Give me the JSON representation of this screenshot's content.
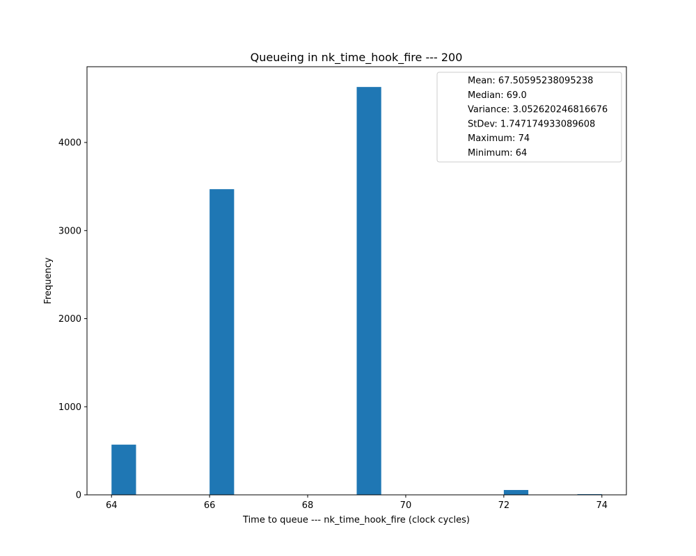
{
  "chart_data": {
    "type": "bar",
    "title": "Queueing in nk_time_hook_fire --- 200",
    "xlabel": "Time to queue --- nk_time_hook_fire (clock cycles)",
    "ylabel": "Frequency",
    "xlim": [
      63.5,
      74.5
    ],
    "ylim": [
      0,
      4860
    ],
    "xticks": [
      64,
      66,
      68,
      70,
      72,
      74
    ],
    "yticks": [
      0,
      1000,
      2000,
      3000,
      4000
    ],
    "bin_width": 0.5,
    "bars": [
      {
        "x0": 64.0,
        "value": 570
      },
      {
        "x0": 66.0,
        "value": 3470
      },
      {
        "x0": 69.0,
        "value": 4630
      },
      {
        "x0": 72.0,
        "value": 55
      },
      {
        "x0": 73.5,
        "value": 8
      }
    ],
    "bar_color": "#1f77b4",
    "grid": false,
    "legend_position": "top-right",
    "legend": [
      "Mean: 67.50595238095238",
      "Median: 69.0",
      "Variance: 3.052620246816676",
      "StDev: 1.747174933089608",
      "Maximum: 74",
      "Minimum: 64"
    ]
  }
}
